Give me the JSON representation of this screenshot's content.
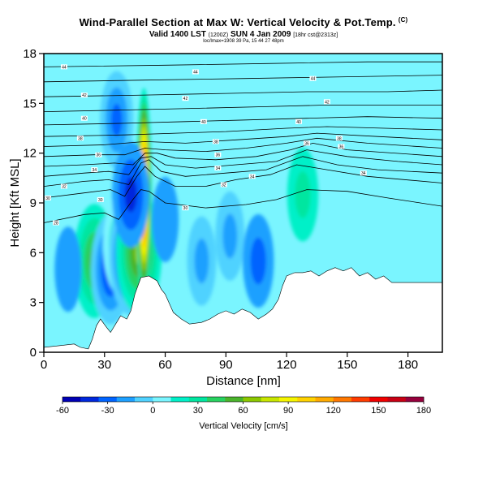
{
  "header": {
    "title": "Wind-Parallel Section at Max W: Vertical Velocity & Pot.Temp.",
    "copyright": "(C)",
    "valid_line": "Valid 1400 LST",
    "valid_utc": "(1200Z)",
    "valid_date": "SUN 4 Jan 2009",
    "run_info": "[18hr cst@2313z]",
    "sub_line": "loc/lmax=1908 39 Pa, 15 44 27 48pm"
  },
  "chart_data": {
    "type": "heatmap",
    "xlabel": "Distance [nm]",
    "ylabel": "Height [Kft MSL]",
    "x_ticks": [
      0,
      30,
      60,
      90,
      120,
      150,
      180
    ],
    "y_ticks": [
      0,
      3,
      6,
      9,
      12,
      15,
      18
    ],
    "xlim": [
      0,
      197
    ],
    "ylim": [
      0,
      18
    ],
    "colorbar": {
      "label": "Vertical Velocity [cm/s]",
      "ticks": [
        -60,
        -30,
        0,
        30,
        60,
        90,
        120,
        150,
        180
      ],
      "range": [
        -60,
        180
      ],
      "colors": [
        "#0000b4",
        "#0028dc",
        "#0064ff",
        "#1ea0ff",
        "#50d2ff",
        "#7af5ff",
        "#00f0c8",
        "#00e6a0",
        "#28d260",
        "#4ab42c",
        "#8cc800",
        "#c8e600",
        "#f5f500",
        "#ffd200",
        "#ffaa00",
        "#ff7800",
        "#ff3c00",
        "#f00000",
        "#c80014",
        "#96003c"
      ]
    },
    "terrain_top_kft": [
      [
        0,
        0.3
      ],
      [
        8,
        0.4
      ],
      [
        15,
        0.5
      ],
      [
        18,
        0.3
      ],
      [
        22,
        0.2
      ],
      [
        24,
        0.8
      ],
      [
        26,
        1.6
      ],
      [
        28,
        2.0
      ],
      [
        31,
        1.5
      ],
      [
        33,
        1.2
      ],
      [
        36,
        1.8
      ],
      [
        38,
        2.2
      ],
      [
        41,
        2.0
      ],
      [
        43,
        2.5
      ],
      [
        45,
        3.5
      ],
      [
        48,
        4.5
      ],
      [
        52,
        4.6
      ],
      [
        56,
        4.3
      ],
      [
        58,
        3.8
      ],
      [
        60,
        3.5
      ],
      [
        64,
        2.4
      ],
      [
        68,
        2.0
      ],
      [
        72,
        1.7
      ],
      [
        78,
        1.8
      ],
      [
        82,
        2.0
      ],
      [
        86,
        2.3
      ],
      [
        90,
        2.5
      ],
      [
        94,
        2.3
      ],
      [
        98,
        2.6
      ],
      [
        102,
        2.4
      ],
      [
        106,
        2.0
      ],
      [
        110,
        2.3
      ],
      [
        113,
        2.6
      ],
      [
        116,
        3.2
      ],
      [
        118,
        4.0
      ],
      [
        120,
        4.6
      ],
      [
        124,
        4.8
      ],
      [
        128,
        4.8
      ],
      [
        132,
        4.9
      ],
      [
        136,
        4.6
      ],
      [
        140,
        4.9
      ],
      [
        144,
        5.1
      ],
      [
        148,
        4.9
      ],
      [
        152,
        5.1
      ],
      [
        156,
        4.6
      ],
      [
        160,
        4.8
      ],
      [
        164,
        4.4
      ],
      [
        168,
        4.6
      ],
      [
        172,
        4.2
      ],
      [
        180,
        4.2
      ],
      [
        190,
        4.2
      ],
      [
        197,
        4.2
      ]
    ],
    "vertical_velocity_features": [
      {
        "x": 25,
        "y": 5.5,
        "w_cms": 50
      },
      {
        "x": 33,
        "y": 5.0,
        "w_cms": -45
      },
      {
        "x": 38,
        "y": 6.5,
        "w_cms": 35
      },
      {
        "x": 43,
        "y": 5.8,
        "w_cms": -55
      },
      {
        "x": 47,
        "y": 6.0,
        "w_cms": 60
      },
      {
        "x": 49.5,
        "y": 9.5,
        "w_cms": 170
      },
      {
        "x": 36,
        "y": 14.0,
        "w_cms": -30
      },
      {
        "x": 43,
        "y": 9.5,
        "w_cms": -40
      },
      {
        "x": 78,
        "y": 5.5,
        "w_cms": -20
      },
      {
        "x": 92,
        "y": 7.0,
        "w_cms": -20
      },
      {
        "x": 106,
        "y": 5.5,
        "w_cms": -25
      },
      {
        "x": 128,
        "y": 9.5,
        "w_cms": 25
      },
      {
        "x": 12,
        "y": 5.0,
        "w_cms": -15
      },
      {
        "x": 60,
        "y": 8.0,
        "w_cms": -15
      }
    ],
    "isentropes_kft": [
      [
        [
          0,
          7.8
        ],
        [
          20,
          8.3
        ],
        [
          30,
          8.4
        ],
        [
          37,
          8.0
        ],
        [
          44,
          9.2
        ],
        [
          48,
          9.8
        ],
        [
          52,
          9.7
        ],
        [
          60,
          9.0
        ],
        [
          80,
          8.7
        ],
        [
          100,
          8.9
        ],
        [
          115,
          9.2
        ],
        [
          130,
          9.8
        ],
        [
          150,
          9.7
        ],
        [
          170,
          9.3
        ],
        [
          197,
          8.8
        ]
      ],
      [
        [
          0,
          9.3
        ],
        [
          20,
          9.6
        ],
        [
          33,
          9.8
        ],
        [
          40,
          9.4
        ],
        [
          46,
          10.6
        ],
        [
          50,
          11.2
        ],
        [
          55,
          10.6
        ],
        [
          65,
          10.0
        ],
        [
          80,
          10.0
        ],
        [
          95,
          10.4
        ],
        [
          112,
          10.7
        ],
        [
          125,
          11.3
        ],
        [
          140,
          11.0
        ],
        [
          160,
          10.6
        ],
        [
          197,
          10.2
        ]
      ],
      [
        [
          0,
          10.0
        ],
        [
          20,
          10.3
        ],
        [
          32,
          10.4
        ],
        [
          42,
          10.1
        ],
        [
          48,
          11.4
        ],
        [
          52,
          11.6
        ],
        [
          58,
          10.9
        ],
        [
          70,
          10.6
        ],
        [
          90,
          10.8
        ],
        [
          110,
          11.0
        ],
        [
          128,
          11.8
        ],
        [
          145,
          11.3
        ],
        [
          165,
          11.0
        ],
        [
          197,
          10.8
        ]
      ],
      [
        [
          0,
          10.6
        ],
        [
          20,
          10.8
        ],
        [
          32,
          10.9
        ],
        [
          42,
          10.7
        ],
        [
          48,
          11.7
        ],
        [
          53,
          11.8
        ],
        [
          60,
          11.3
        ],
        [
          75,
          11.1
        ],
        [
          95,
          11.3
        ],
        [
          115,
          11.5
        ],
        [
          130,
          12.2
        ],
        [
          150,
          11.8
        ],
        [
          175,
          11.5
        ],
        [
          197,
          11.3
        ]
      ],
      [
        [
          0,
          11.2
        ],
        [
          20,
          11.3
        ],
        [
          35,
          11.4
        ],
        [
          44,
          11.3
        ],
        [
          50,
          12.0
        ],
        [
          56,
          12.0
        ],
        [
          65,
          11.7
        ],
        [
          85,
          11.6
        ],
        [
          105,
          11.8
        ],
        [
          122,
          12.2
        ],
        [
          133,
          12.6
        ],
        [
          150,
          12.2
        ],
        [
          197,
          11.8
        ]
      ],
      [
        [
          0,
          11.8
        ],
        [
          25,
          11.9
        ],
        [
          40,
          11.9
        ],
        [
          50,
          12.3
        ],
        [
          60,
          12.2
        ],
        [
          80,
          12.1
        ],
        [
          100,
          12.3
        ],
        [
          120,
          12.6
        ],
        [
          135,
          12.9
        ],
        [
          160,
          12.6
        ],
        [
          197,
          12.3
        ]
      ],
      [
        [
          0,
          12.4
        ],
        [
          30,
          12.5
        ],
        [
          50,
          12.7
        ],
        [
          70,
          12.6
        ],
        [
          95,
          12.8
        ],
        [
          120,
          13.0
        ],
        [
          135,
          13.2
        ],
        [
          165,
          13.0
        ],
        [
          197,
          12.8
        ]
      ],
      [
        [
          0,
          13.0
        ],
        [
          40,
          13.1
        ],
        [
          65,
          13.2
        ],
        [
          90,
          13.3
        ],
        [
          120,
          13.5
        ],
        [
          140,
          13.6
        ],
        [
          197,
          13.4
        ]
      ],
      [
        [
          0,
          13.7
        ],
        [
          40,
          13.8
        ],
        [
          70,
          13.9
        ],
        [
          100,
          14.0
        ],
        [
          130,
          14.1
        ],
        [
          160,
          14.2
        ],
        [
          197,
          14.1
        ]
      ],
      [
        [
          0,
          14.5
        ],
        [
          40,
          14.6
        ],
        [
          75,
          14.7
        ],
        [
          110,
          14.8
        ],
        [
          140,
          14.9
        ],
        [
          197,
          14.9
        ]
      ],
      [
        [
          0,
          15.4
        ],
        [
          50,
          15.5
        ],
        [
          90,
          15.6
        ],
        [
          130,
          15.7
        ],
        [
          170,
          15.7
        ],
        [
          197,
          15.8
        ]
      ],
      [
        [
          0,
          16.3
        ],
        [
          50,
          16.4
        ],
        [
          100,
          16.5
        ],
        [
          150,
          16.6
        ],
        [
          197,
          16.7
        ]
      ],
      [
        [
          0,
          17.2
        ],
        [
          60,
          17.3
        ],
        [
          110,
          17.4
        ],
        [
          160,
          17.5
        ],
        [
          197,
          17.5
        ]
      ]
    ],
    "isentrope_labels": [
      {
        "x": 10,
        "y": 17.2,
        "text": "44"
      },
      {
        "x": 75,
        "y": 16.9,
        "text": "44"
      },
      {
        "x": 133,
        "y": 16.5,
        "text": "44"
      },
      {
        "x": 20,
        "y": 15.5,
        "text": "42"
      },
      {
        "x": 70,
        "y": 15.3,
        "text": "42"
      },
      {
        "x": 140,
        "y": 15.1,
        "text": "42"
      },
      {
        "x": 20,
        "y": 14.1,
        "text": "40"
      },
      {
        "x": 79,
        "y": 13.9,
        "text": "40"
      },
      {
        "x": 126,
        "y": 13.9,
        "text": "40"
      },
      {
        "x": 18,
        "y": 12.9,
        "text": "38"
      },
      {
        "x": 85,
        "y": 12.7,
        "text": "38"
      },
      {
        "x": 146,
        "y": 12.9,
        "text": "38"
      },
      {
        "x": 27,
        "y": 11.9,
        "text": "36"
      },
      {
        "x": 86,
        "y": 11.9,
        "text": "36"
      },
      {
        "x": 130,
        "y": 12.6,
        "text": "36"
      },
      {
        "x": 147,
        "y": 12.4,
        "text": "36"
      },
      {
        "x": 25,
        "y": 11.0,
        "text": "34"
      },
      {
        "x": 86,
        "y": 11.1,
        "text": "34"
      },
      {
        "x": 103,
        "y": 10.6,
        "text": "34"
      },
      {
        "x": 158,
        "y": 10.8,
        "text": "34"
      },
      {
        "x": 10,
        "y": 10.0,
        "text": "32"
      },
      {
        "x": 89,
        "y": 10.1,
        "text": "32"
      },
      {
        "x": 2,
        "y": 9.3,
        "text": "30"
      },
      {
        "x": 28,
        "y": 9.2,
        "text": "30"
      },
      {
        "x": 70,
        "y": 8.7,
        "text": "30"
      },
      {
        "x": 6,
        "y": 7.8,
        "text": "28"
      }
    ]
  }
}
